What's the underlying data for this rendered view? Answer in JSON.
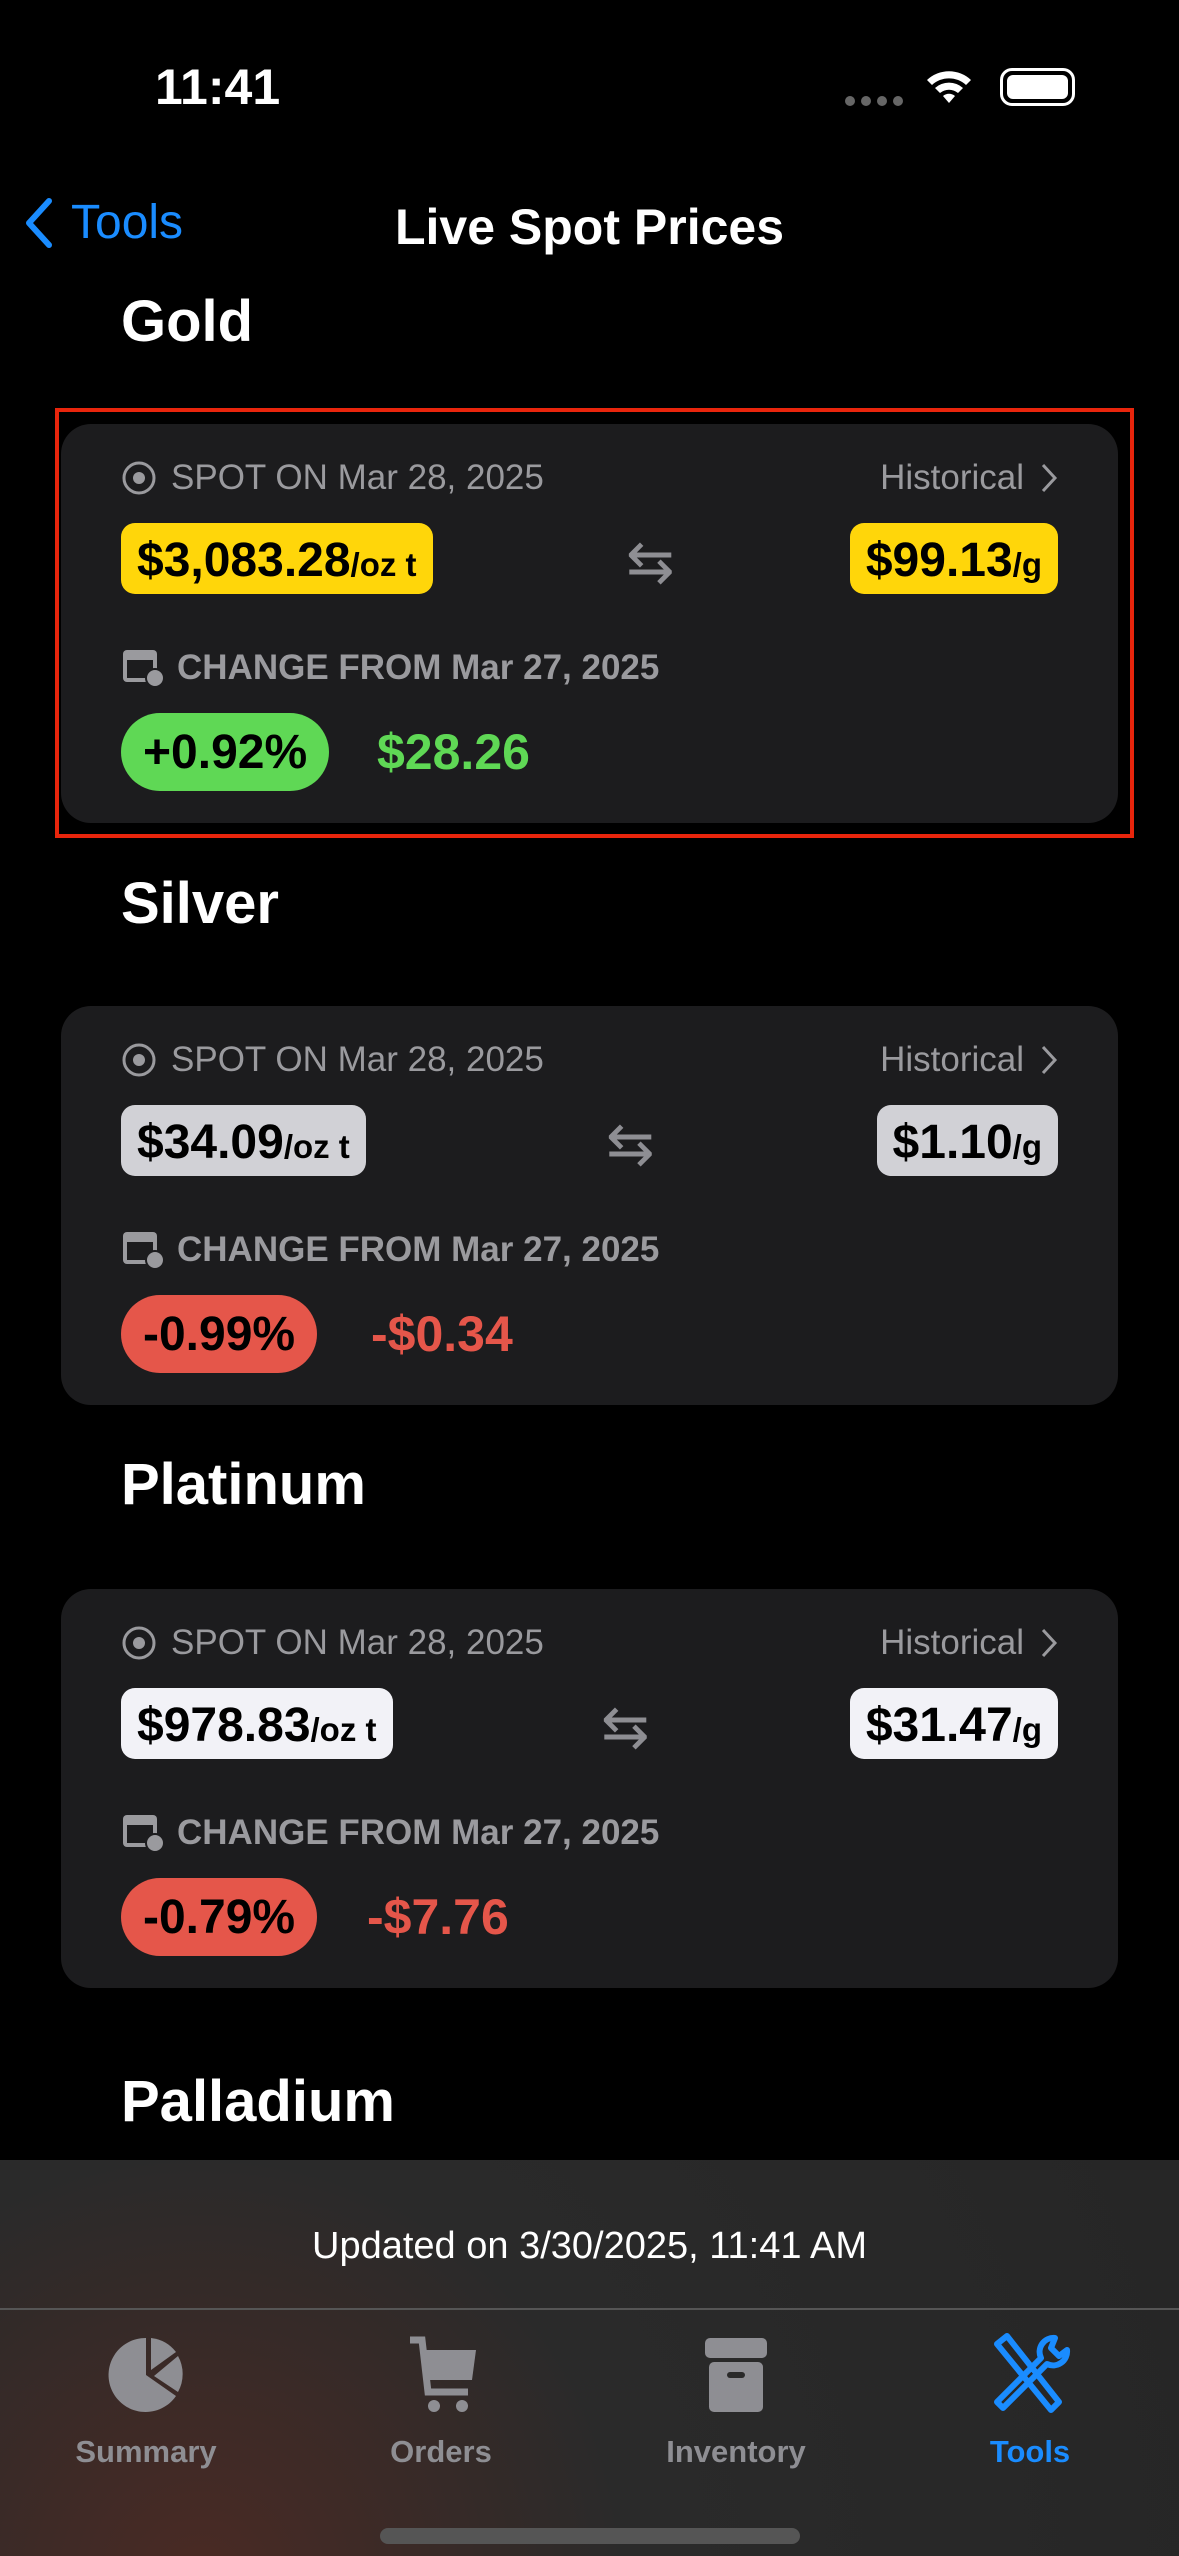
{
  "status_bar": {
    "time": "11:41"
  },
  "nav": {
    "back_label": "Tools",
    "title": "Live Spot Prices"
  },
  "metals": [
    {
      "name": "Gold",
      "spot_label": "SPOT ON Mar 28, 2025",
      "historical": "Historical",
      "price_oz": "$3,083.28",
      "unit_oz": "/oz t",
      "price_g": "$99.13",
      "unit_g": "/g",
      "change_label": "CHANGE FROM Mar 27, 2025",
      "change_pct": "+0.92%",
      "change_amt": "$28.26",
      "pill_color": "#ffd60a",
      "trend": "up"
    },
    {
      "name": "Silver",
      "spot_label": "SPOT ON Mar 28, 2025",
      "historical": "Historical",
      "price_oz": "$34.09",
      "unit_oz": "/oz t",
      "price_g": "$1.10",
      "unit_g": "/g",
      "change_label": "CHANGE FROM Mar 27, 2025",
      "change_pct": "-0.99%",
      "change_amt": "-$0.34",
      "pill_color": "#d1d1d6",
      "trend": "down"
    },
    {
      "name": "Platinum",
      "spot_label": "SPOT ON Mar 28, 2025",
      "historical": "Historical",
      "price_oz": "$978.83",
      "unit_oz": "/oz t",
      "price_g": "$31.47",
      "unit_g": "/g",
      "change_label": "CHANGE FROM Mar 27, 2025",
      "change_pct": "-0.79%",
      "change_amt": "-$7.76",
      "pill_color": "#f2f2f7",
      "trend": "down"
    },
    {
      "name": "Palladium"
    }
  ],
  "colors": {
    "up": "#5fd855",
    "down": "#e5564a",
    "accent": "#1a8cff"
  },
  "footer": {
    "updated": "Updated on 3/30/2025, 11:41 AM"
  },
  "tabs": [
    {
      "label": "Summary",
      "icon": "pie-chart-icon"
    },
    {
      "label": "Orders",
      "icon": "cart-icon"
    },
    {
      "label": "Inventory",
      "icon": "archive-box-icon"
    },
    {
      "label": "Tools",
      "icon": "tools-icon",
      "active": true
    }
  ]
}
